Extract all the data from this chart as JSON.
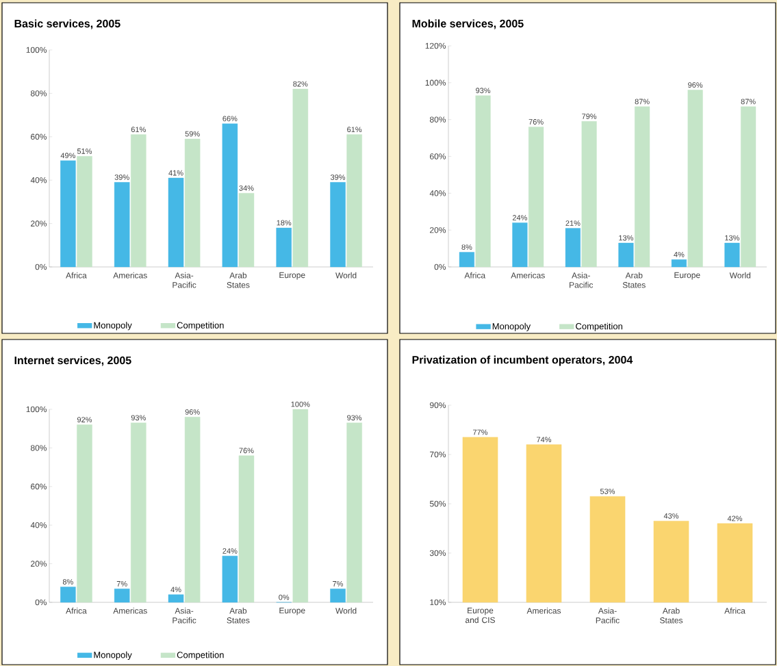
{
  "chart_data": [
    {
      "type": "bar",
      "title": "Basic services, 2005",
      "categories": [
        "Africa",
        "Americas",
        "Asia-Pacific",
        "Arab States",
        "Europe",
        "World"
      ],
      "series": [
        {
          "name": "Monopoly",
          "color": "#45b8e6",
          "values": [
            49,
            39,
            41,
            66,
            18,
            39
          ],
          "value_labels": [
            "49%",
            "39%",
            "41%",
            "66%",
            "18%",
            "39%"
          ]
        },
        {
          "name": "Competition",
          "color": "#c5e5c8",
          "values": [
            51,
            61,
            59,
            34,
            82,
            61
          ],
          "value_labels": [
            "51%",
            "61%",
            "59%",
            "34%",
            "82%",
            "61%"
          ]
        }
      ],
      "ylim": [
        0,
        100
      ],
      "yticks": [
        {
          "value": 0,
          "label": "0%"
        },
        {
          "value": 20,
          "label": "20%"
        },
        {
          "value": 40,
          "label": "40%"
        },
        {
          "value": 60,
          "label": "60%"
        },
        {
          "value": 80,
          "label": "80%"
        },
        {
          "value": 100,
          "label": "100%"
        }
      ],
      "legend": "bottom"
    },
    {
      "type": "bar",
      "title": "Mobile services, 2005",
      "categories": [
        "Africa",
        "Americas",
        "Asia-Pacific",
        "Arab States",
        "Europe",
        "World"
      ],
      "series": [
        {
          "name": "Monopoly",
          "color": "#45b8e6",
          "values": [
            8,
            24,
            21,
            13,
            4,
            13
          ],
          "value_labels": [
            "8%",
            "24%",
            "21%",
            "13%",
            "4%",
            "13%"
          ]
        },
        {
          "name": "Competition",
          "color": "#c5e5c8",
          "values": [
            93,
            76,
            79,
            87,
            96,
            87
          ],
          "value_labels": [
            "93%",
            "76%",
            "79%",
            "87%",
            "96%",
            "87%"
          ]
        }
      ],
      "ylim": [
        0,
        120
      ],
      "yticks": [
        {
          "value": 0,
          "label": "0%"
        },
        {
          "value": 20,
          "label": "20%"
        },
        {
          "value": 40,
          "label": "40%"
        },
        {
          "value": 60,
          "label": "60%"
        },
        {
          "value": 80,
          "label": "80%"
        },
        {
          "value": 100,
          "label": "100%"
        },
        {
          "value": 120,
          "label": "120%"
        }
      ],
      "legend": "bottom"
    },
    {
      "type": "bar",
      "title": "Internet services, 2005",
      "categories": [
        "Africa",
        "Americas",
        "Asia-Pacific",
        "Arab States",
        "Europe",
        "World"
      ],
      "series": [
        {
          "name": "Monopoly",
          "color": "#45b8e6",
          "values": [
            8,
            7,
            4,
            24,
            0,
            7
          ],
          "value_labels": [
            "8%",
            "7%",
            "4%",
            "24%",
            "0%",
            "7%"
          ]
        },
        {
          "name": "Competition",
          "color": "#c5e5c8",
          "values": [
            92,
            93,
            96,
            76,
            100,
            93
          ],
          "value_labels": [
            "92%",
            "93%",
            "96%",
            "76%",
            "100%",
            "93%"
          ]
        }
      ],
      "ylim": [
        0,
        100
      ],
      "yticks": [
        {
          "value": 0,
          "label": "0%"
        },
        {
          "value": 20,
          "label": "20%"
        },
        {
          "value": 40,
          "label": "40%"
        },
        {
          "value": 60,
          "label": "60%"
        },
        {
          "value": 80,
          "label": "80%"
        },
        {
          "value": 100,
          "label": "100%"
        }
      ],
      "legend": "bottom"
    },
    {
      "type": "bar",
      "title": "Privatization of incumbent operators, 2004",
      "categories": [
        "Europe and CIS",
        "Americas",
        "Asia-Pacific",
        "Arab States",
        "Africa"
      ],
      "color": "#fad56f",
      "values": [
        77,
        74,
        53,
        43,
        42
      ],
      "value_labels": [
        "77%",
        "74%",
        "53%",
        "43%",
        "42%"
      ],
      "ylim": [
        10,
        90
      ],
      "yticks": [
        {
          "value": 10,
          "label": "10%"
        },
        {
          "value": 30,
          "label": "30%"
        },
        {
          "value": 50,
          "label": "50%"
        },
        {
          "value": 70,
          "label": "70%"
        },
        {
          "value": 90,
          "label": "90%"
        }
      ]
    }
  ]
}
